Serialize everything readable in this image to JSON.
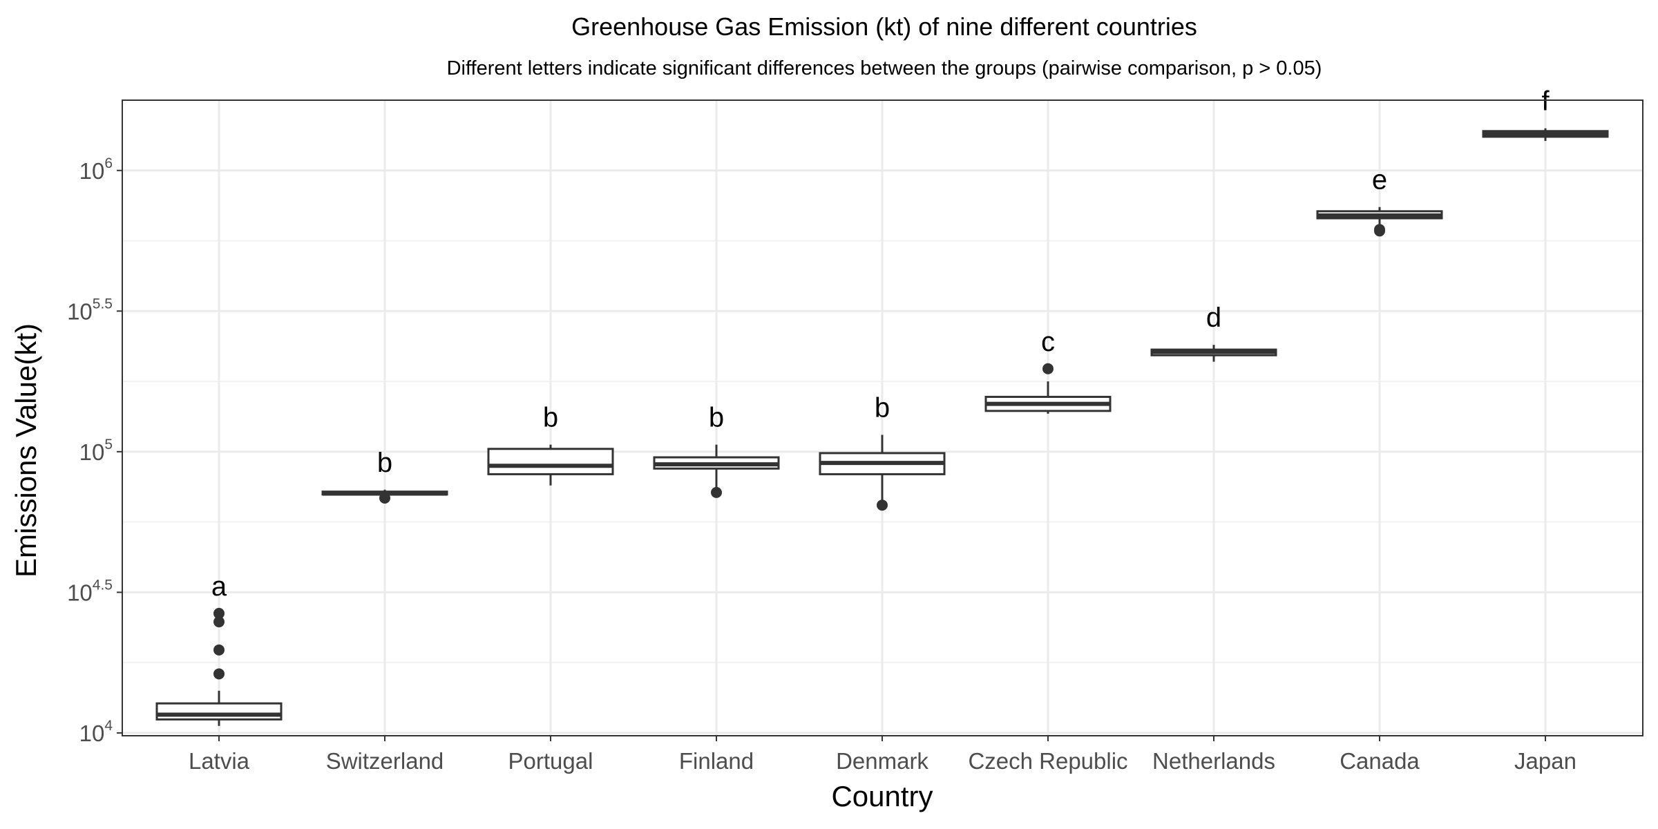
{
  "chart_data": {
    "type": "box",
    "title": "Greenhouse Gas Emission (kt) of nine different countries",
    "subtitle": "Different letters indicate significant differences between the groups (pairwise comparison, p > 0.05)",
    "xlabel": "Country",
    "ylabel": "Emissions Value(kt)",
    "y_scale": "log10",
    "ylim_log10": [
      3.99,
      6.25
    ],
    "y_ticks": [
      {
        "log10": 4.0,
        "base": "10",
        "exp": "4"
      },
      {
        "log10": 4.5,
        "base": "10",
        "exp": "4.5"
      },
      {
        "log10": 5.0,
        "base": "10",
        "exp": "5"
      },
      {
        "log10": 5.5,
        "base": "10",
        "exp": "5.5"
      },
      {
        "log10": 6.0,
        "base": "10",
        "exp": "6"
      }
    ],
    "grid": true,
    "categories": [
      "Latvia",
      "Switzerland",
      "Portugal",
      "Finland",
      "Denmark",
      "Czech Republic",
      "Netherlands",
      "Canada",
      "Japan"
    ],
    "box_log10": [
      {
        "whisker_low": 4.025,
        "q1": 4.048,
        "median": 4.065,
        "q3": 4.105,
        "whisker_high": 4.15,
        "outliers": [
          4.21,
          4.295,
          4.395,
          4.425
        ],
        "letter": "a"
      },
      {
        "whisker_low": 4.84,
        "q1": 4.848,
        "median": 4.851,
        "q3": 4.858,
        "whisker_high": 4.865,
        "outliers": [
          4.835
        ],
        "letter": "b"
      },
      {
        "whisker_low": 4.88,
        "q1": 4.92,
        "median": 4.95,
        "q3": 5.01,
        "whisker_high": 5.025,
        "outliers": [],
        "letter": "b"
      },
      {
        "whisker_low": 4.855,
        "q1": 4.94,
        "median": 4.955,
        "q3": 4.98,
        "whisker_high": 5.025,
        "outliers": [
          4.855
        ],
        "letter": "b"
      },
      {
        "whisker_low": 4.81,
        "q1": 4.92,
        "median": 4.96,
        "q3": 4.995,
        "whisker_high": 5.06,
        "outliers": [
          4.81
        ],
        "letter": "b"
      },
      {
        "whisker_low": 5.135,
        "q1": 5.145,
        "median": 5.17,
        "q3": 5.195,
        "whisker_high": 5.25,
        "outliers": [
          5.295
        ],
        "letter": "c"
      },
      {
        "whisker_low": 5.32,
        "q1": 5.343,
        "median": 5.355,
        "q3": 5.363,
        "whisker_high": 5.38,
        "outliers": [],
        "letter": "d"
      },
      {
        "whisker_low": 5.785,
        "q1": 5.83,
        "median": 5.84,
        "q3": 5.855,
        "whisker_high": 5.87,
        "outliers": [
          5.79,
          5.785
        ],
        "letter": "e"
      },
      {
        "whisker_low": 6.105,
        "q1": 6.12,
        "median": 6.13,
        "q3": 6.14,
        "whisker_high": 6.15,
        "outliers": [],
        "letter": "f"
      }
    ],
    "colors": {
      "box_fill": "#ffffff",
      "box_stroke": "#333333",
      "outlier": "#333333",
      "panel_border": "#333333",
      "grid_major": "#ebebeb",
      "grid_minor": "#f2f2f2"
    }
  }
}
